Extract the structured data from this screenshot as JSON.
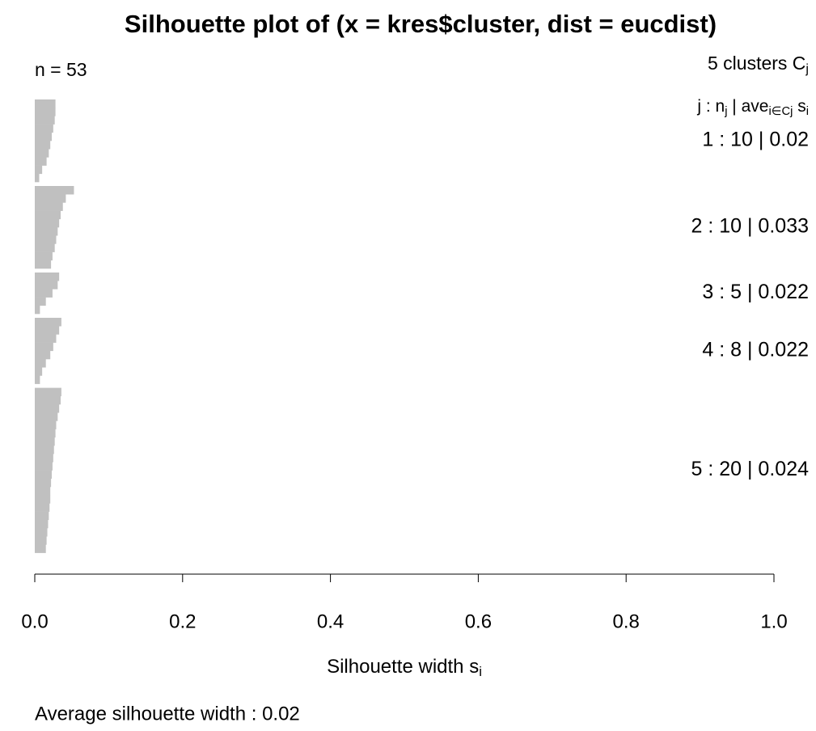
{
  "chart_data": {
    "type": "bar",
    "title": "Silhouette plot of (x = kres$cluster, dist = eucdist)",
    "n_label": "n = 53",
    "legend_title": [
      {
        "text": "5  clusters  C"
      },
      {
        "text": "j",
        "sub": true
      }
    ],
    "legend_header": [
      {
        "text": "j :  n"
      },
      {
        "text": "j",
        "sub": true
      },
      {
        "text": " | ave"
      },
      {
        "text": "i∈Cj",
        "sub": true
      },
      {
        "text": "  s"
      },
      {
        "text": "i",
        "sub": true
      }
    ],
    "color": "#c0c0c0",
    "clusters": [
      {
        "label": "1 :   10  |  0.02",
        "values": [
          0.028,
          0.028,
          0.027,
          0.025,
          0.023,
          0.021,
          0.019,
          0.016,
          0.01,
          0.006
        ]
      },
      {
        "label": "2 :   10  |  0.033",
        "values": [
          0.053,
          0.042,
          0.038,
          0.035,
          0.033,
          0.031,
          0.029,
          0.027,
          0.024,
          0.022
        ]
      },
      {
        "label": "3 :   5  |  0.022",
        "values": [
          0.033,
          0.031,
          0.024,
          0.015,
          0.007
        ]
      },
      {
        "label": "4 :   8  |  0.022",
        "values": [
          0.036,
          0.033,
          0.029,
          0.025,
          0.021,
          0.015,
          0.01,
          0.007
        ]
      },
      {
        "label": "5 :   20  |  0.024",
        "values": [
          0.036,
          0.035,
          0.033,
          0.031,
          0.029,
          0.028,
          0.027,
          0.026,
          0.025,
          0.024,
          0.023,
          0.022,
          0.021,
          0.021,
          0.02,
          0.019,
          0.018,
          0.017,
          0.016,
          0.015
        ]
      }
    ],
    "xlim": [
      0,
      1
    ],
    "xticks": [
      {
        "value": 0,
        "label": "0.0"
      },
      0.2,
      0.4,
      0.6,
      0.8,
      {
        "value": 1,
        "label": "1.0"
      }
    ],
    "x_label": [
      {
        "text": "Silhouette width s"
      },
      {
        "text": "i",
        "sub": true
      }
    ],
    "footer": "Average silhouette width :  0.02"
  }
}
